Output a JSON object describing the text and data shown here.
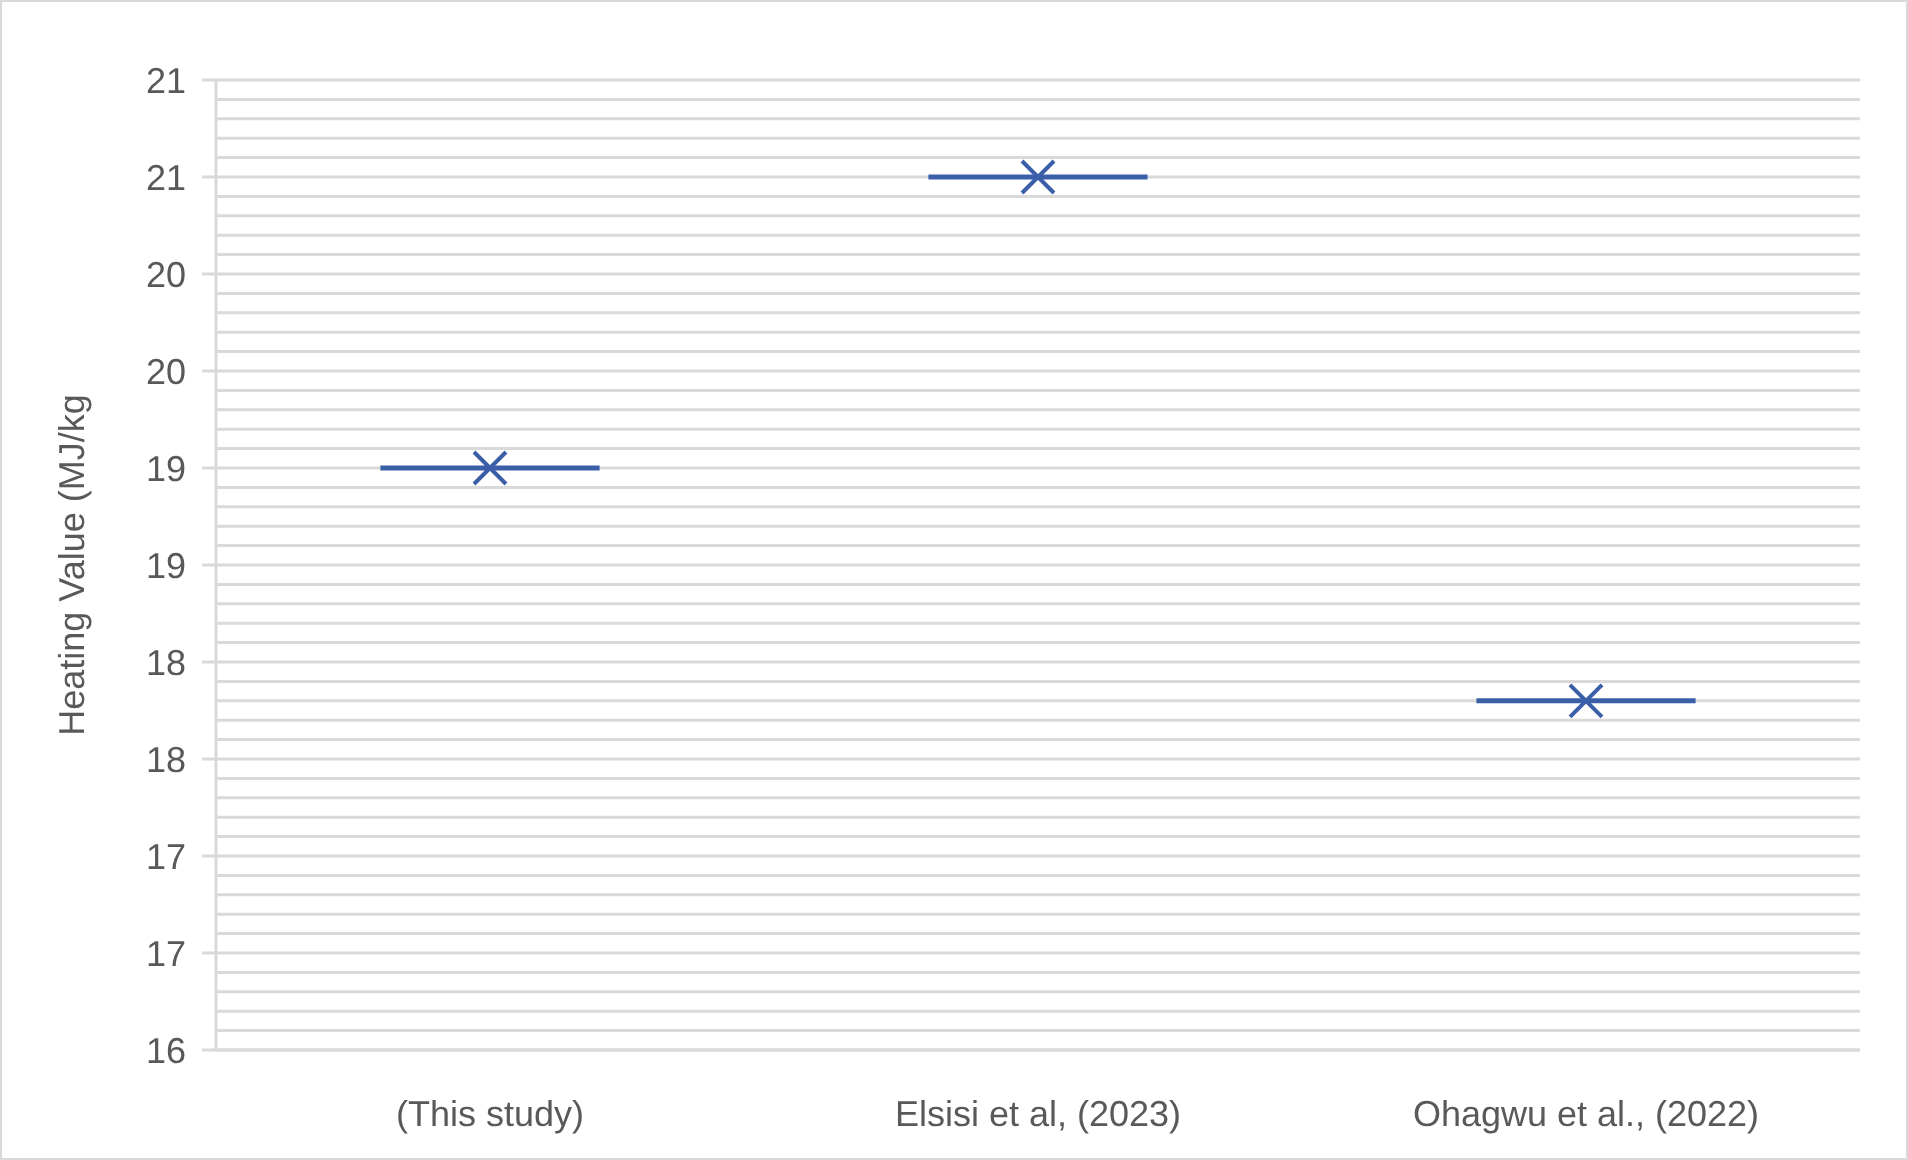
{
  "chart_data": {
    "type": "box",
    "ylabel": "Heating Value (MJ/kg",
    "categories": [
      "(This study)",
      "Elsisi et al, (2023)",
      "Ohagwu et al., (2022)"
    ],
    "color": "#3b5ea8",
    "boxes": [
      {
        "low": 19.0,
        "q1": 19.0,
        "median": 19.0,
        "q3": 19.0,
        "high": 19.0,
        "mean": 19.0
      },
      {
        "low": 20.5,
        "q1": 20.5,
        "median": 20.5,
        "q3": 20.5,
        "high": 20.5,
        "mean": 20.5
      },
      {
        "low": 17.8,
        "q1": 17.8,
        "median": 17.8,
        "q3": 17.8,
        "high": 17.8,
        "mean": 17.8
      }
    ],
    "marker": "cross",
    "ylim": [
      16,
      21
    ],
    "yticks": [
      16,
      {
        "value": 16.1,
        "label": null
      },
      {
        "value": 16.2,
        "label": null
      },
      {
        "value": 16.3,
        "label": null
      },
      {
        "value": 16.4,
        "label": null
      },
      {
        "value": 16.5,
        "label": "17"
      },
      {
        "value": 16.6,
        "label": null
      },
      {
        "value": 16.7,
        "label": null
      },
      {
        "value": 16.8,
        "label": null
      },
      {
        "value": 16.9,
        "label": null
      },
      17,
      {
        "value": 17.1,
        "label": null
      },
      {
        "value": 17.2,
        "label": null
      },
      {
        "value": 17.3,
        "label": null
      },
      {
        "value": 17.4,
        "label": null
      },
      {
        "value": 17.5,
        "label": "18"
      },
      {
        "value": 17.6,
        "label": null
      },
      {
        "value": 17.7,
        "label": null
      },
      {
        "value": 17.8,
        "label": null
      },
      {
        "value": 17.9,
        "label": null
      },
      18,
      {
        "value": 18.1,
        "label": null
      },
      {
        "value": 18.2,
        "label": null
      },
      {
        "value": 18.3,
        "label": null
      },
      {
        "value": 18.4,
        "label": null
      },
      {
        "value": 18.5,
        "label": "19"
      },
      {
        "value": 18.6,
        "label": null
      },
      {
        "value": 18.7,
        "label": null
      },
      {
        "value": 18.8,
        "label": null
      },
      {
        "value": 18.9,
        "label": null
      },
      19,
      {
        "value": 19.1,
        "label": null
      },
      {
        "value": 19.2,
        "label": null
      },
      {
        "value": 19.3,
        "label": null
      },
      {
        "value": 19.4,
        "label": null
      },
      {
        "value": 19.5,
        "label": "20"
      },
      {
        "value": 19.6,
        "label": null
      },
      {
        "value": 19.7,
        "label": null
      },
      {
        "value": 19.8,
        "label": null
      },
      {
        "value": 19.9,
        "label": null
      },
      20,
      {
        "value": 20.1,
        "label": null
      },
      {
        "value": 20.2,
        "label": null
      },
      {
        "value": 20.3,
        "label": null
      },
      {
        "value": 20.4,
        "label": null
      },
      {
        "value": 20.5,
        "label": "21"
      },
      {
        "value": 20.6,
        "label": null
      },
      {
        "value": 20.7,
        "label": null
      },
      {
        "value": 20.8,
        "label": null
      },
      {
        "value": 20.9,
        "label": null
      },
      21
    ],
    "grid": "y"
  }
}
